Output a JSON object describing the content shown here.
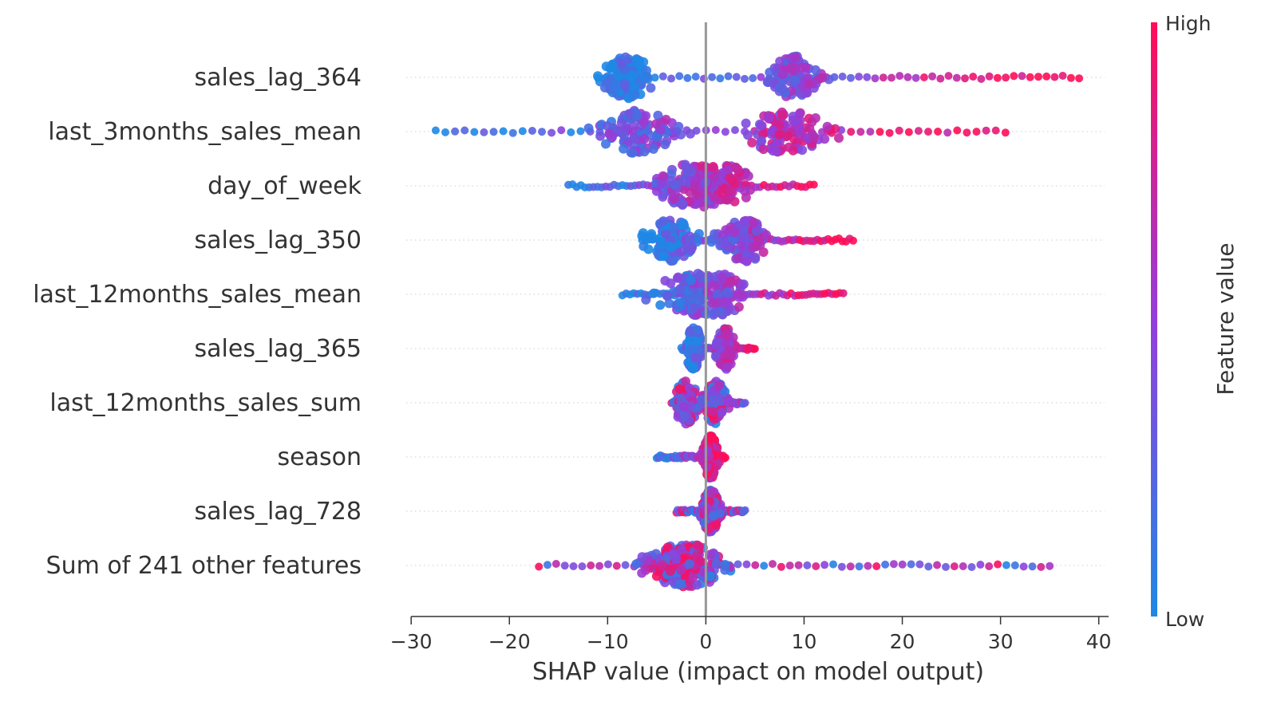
{
  "chart_data": {
    "type": "scatter",
    "subtype": "beeswarm",
    "title": "",
    "xlabel": "SHAP value (impact on model output)",
    "ylabel": "",
    "xlim": [
      -30.5,
      41
    ],
    "xticks": [
      -30,
      -20,
      -10,
      0,
      10,
      20,
      30,
      40
    ],
    "xtick_labels": [
      "−30",
      "−20",
      "−10",
      "0",
      "10",
      "20",
      "30",
      "40"
    ],
    "grid": false,
    "zero_line": true,
    "colorbar": {
      "label": "Feature value",
      "high_label": "High",
      "low_label": "Low",
      "low_color": "#1e88e5",
      "high_color": "#ff0d57",
      "placement": "right"
    },
    "features": [
      {
        "name": "sales_lag_364",
        "min": -11,
        "max": 38,
        "mode": -8,
        "spread": 3,
        "density_peaks": [
          -8,
          9
        ],
        "low_side": "left"
      },
      {
        "name": "last_3months_sales_mean",
        "min": -27.5,
        "max": 30.5,
        "mode": 8,
        "spread": 5,
        "density_peaks": [
          -7,
          8
        ],
        "low_side": "left"
      },
      {
        "name": "day_of_week",
        "min": -14,
        "max": 11,
        "mode": 0,
        "spread": 3,
        "density_peaks": [
          -2,
          0,
          2
        ],
        "low_side": "left"
      },
      {
        "name": "sales_lag_350",
        "min": -6.5,
        "max": 15,
        "mode": -3.5,
        "spread": 3,
        "density_peaks": [
          -3.5,
          4
        ],
        "low_side": "left"
      },
      {
        "name": "last_12months_sales_mean",
        "min": -8.5,
        "max": 14,
        "mode": -0.5,
        "spread": 4,
        "density_peaks": [
          -1.5,
          1
        ],
        "low_side": "left"
      },
      {
        "name": "sales_lag_365",
        "min": -2.5,
        "max": 5,
        "mode": -1.2,
        "spread": 1,
        "density_peaks": [
          -1.2,
          2
        ],
        "low_side": "left"
      },
      {
        "name": "last_12months_sales_sum",
        "min": -3.5,
        "max": 4,
        "mode": 0.5,
        "spread": 1.5,
        "density_peaks": [
          -2,
          1
        ],
        "low_side": "mixed"
      },
      {
        "name": "season",
        "min": -5,
        "max": 2,
        "mode": 0.5,
        "spread": 0.8,
        "density_peaks": [
          0.5
        ],
        "low_side": "left"
      },
      {
        "name": "sales_lag_728",
        "min": -3,
        "max": 4,
        "mode": 0.5,
        "spread": 1,
        "density_peaks": [
          0.5
        ],
        "low_side": "mixed"
      },
      {
        "name": "Sum of 241 other features",
        "min": -17,
        "max": 35,
        "mode": -2,
        "spread": 5,
        "density_peaks": [
          -2
        ],
        "low_side": "mixed"
      }
    ]
  }
}
